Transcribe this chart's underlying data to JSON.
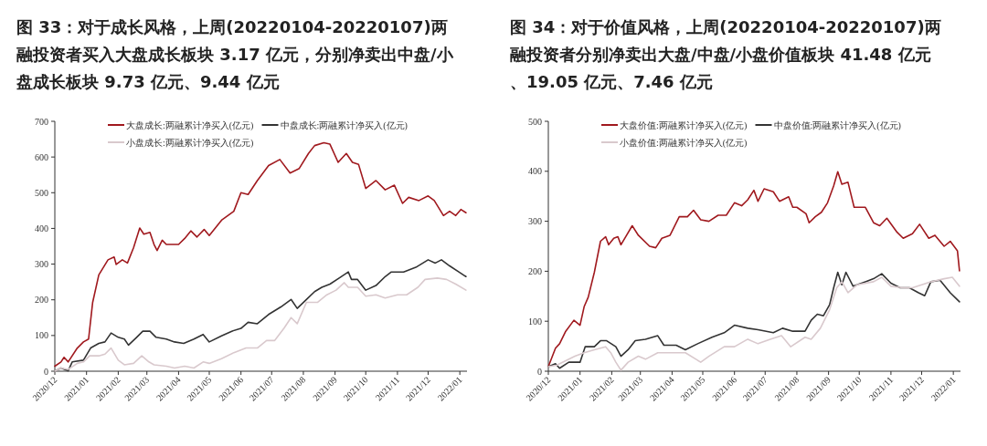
{
  "chart_data": [
    {
      "type": "line",
      "title": "图 33：对于成长风格，上周(20220104-20220107)两融投资者买入大盘成长板块 3.17 亿元，分别净卖出中盘/小盘成长板块 9.73 亿元、9.44 亿元",
      "legend": "top",
      "ylim": [
        0,
        700
      ],
      "yticks": [
        0,
        100,
        200,
        300,
        400,
        500,
        600,
        700
      ],
      "xlim": [
        "2020-12-01",
        "2022-01-08"
      ],
      "xticks": [
        {
          "value": "2020-12-01",
          "label": "2020/12"
        },
        {
          "value": "2021-01-01",
          "label": "2021/01"
        },
        {
          "value": "2021-02-01",
          "label": "2021/02"
        },
        {
          "value": "2021-03-01",
          "label": "2021/03"
        },
        {
          "value": "2021-04-01",
          "label": "2021/04"
        },
        {
          "value": "2021-05-01",
          "label": "2021/05"
        },
        {
          "value": "2021-06-01",
          "label": "2021/06"
        },
        {
          "value": "2021-07-01",
          "label": "2021/07"
        },
        {
          "value": "2021-08-01",
          "label": "2021/08"
        },
        {
          "value": "2021-09-01",
          "label": "2021/09"
        },
        {
          "value": "2021-10-01",
          "label": "2021/10"
        },
        {
          "value": "2021-11-01",
          "label": "2021/11"
        },
        {
          "value": "2021-12-01",
          "label": "2021/12"
        },
        {
          "value": "2022-01-01",
          "label": "2022/01"
        }
      ],
      "series": [
        {
          "name": "大盘成长:两融累计净买入(亿元)",
          "color": "#a0191e",
          "x": [
            "2020-12-01",
            "2020-12-07",
            "2020-12-10",
            "2020-12-14",
            "2020-12-23",
            "2020-12-29",
            "2021-01-03",
            "2021-01-07",
            "2021-01-13",
            "2021-01-22",
            "2021-01-28",
            "2021-01-30",
            "2021-02-05",
            "2021-02-10",
            "2021-02-16",
            "2021-02-22",
            "2021-02-26",
            "2021-03-04",
            "2021-03-08",
            "2021-03-11",
            "2021-03-16",
            "2021-03-20",
            "2021-04-01",
            "2021-04-07",
            "2021-04-13",
            "2021-04-19",
            "2021-04-26",
            "2021-05-01",
            "2021-05-13",
            "2021-05-25",
            "2021-06-01",
            "2021-06-08",
            "2021-06-17",
            "2021-06-28",
            "2021-07-09",
            "2021-07-19",
            "2021-07-28",
            "2021-08-06",
            "2021-08-12",
            "2021-08-21",
            "2021-08-27",
            "2021-09-04",
            "2021-09-12",
            "2021-09-18",
            "2021-09-24",
            "2021-10-01",
            "2021-10-11",
            "2021-10-20",
            "2021-10-29",
            "2021-11-06",
            "2021-11-12",
            "2021-11-22",
            "2021-12-01",
            "2021-12-07",
            "2021-12-16",
            "2021-12-22",
            "2021-12-28",
            "2022-01-02",
            "2022-01-07"
          ],
          "values": [
            14,
            26,
            39,
            26,
            65,
            82,
            90,
            193,
            270,
            312,
            320,
            299,
            312,
            303,
            346,
            401,
            384,
            389,
            355,
            338,
            367,
            355,
            355,
            372,
            393,
            376,
            397,
            380,
            423,
            448,
            500,
            495,
            534,
            576,
            593,
            555,
            568,
            610,
            632,
            640,
            636,
            585,
            610,
            585,
            579,
            512,
            534,
            508,
            521,
            470,
            487,
            478,
            491,
            478,
            436,
            448,
            436,
            453,
            444
          ]
        },
        {
          "name": "中盘成长:两融累计净买入(亿元)",
          "color": "#333333",
          "x": [
            "2020-12-01",
            "2020-12-07",
            "2020-12-14",
            "2020-12-18",
            "2020-12-29",
            "2021-01-05",
            "2021-01-13",
            "2021-01-19",
            "2021-01-25",
            "2021-02-01",
            "2021-02-07",
            "2021-02-11",
            "2021-02-19",
            "2021-02-25",
            "2021-03-04",
            "2021-03-10",
            "2021-03-20",
            "2021-03-28",
            "2021-04-06",
            "2021-04-16",
            "2021-04-25",
            "2021-05-01",
            "2021-05-13",
            "2021-05-23",
            "2021-06-01",
            "2021-06-08",
            "2021-06-17",
            "2021-06-28",
            "2021-07-10",
            "2021-07-20",
            "2021-07-26",
            "2021-08-04",
            "2021-08-12",
            "2021-08-19",
            "2021-08-27",
            "2021-09-05",
            "2021-09-14",
            "2021-09-17",
            "2021-09-23",
            "2021-10-01",
            "2021-10-11",
            "2021-10-20",
            "2021-10-26",
            "2021-11-07",
            "2021-11-19",
            "2021-12-01",
            "2021-12-08",
            "2021-12-14",
            "2021-12-22",
            "2021-12-31",
            "2022-01-07"
          ],
          "values": [
            0,
            9,
            1,
            26,
            31,
            65,
            78,
            82,
            107,
            95,
            90,
            73,
            95,
            112,
            112,
            95,
            90,
            82,
            78,
            90,
            103,
            82,
            99,
            112,
            120,
            137,
            133,
            159,
            180,
            201,
            176,
            201,
            223,
            235,
            244,
            261,
            278,
            257,
            257,
            227,
            240,
            265,
            278,
            278,
            291,
            312,
            303,
            312,
            295,
            278,
            265
          ]
        },
        {
          "name": "小盘成长:两融累计净买入(亿元)",
          "color": "#d9c9cd",
          "x": [
            "2020-12-01",
            "2020-12-07",
            "2020-12-14",
            "2020-12-23",
            "2020-12-29",
            "2021-01-04",
            "2021-01-13",
            "2021-01-19",
            "2021-01-25",
            "2021-02-01",
            "2021-02-07",
            "2021-02-16",
            "2021-02-24",
            "2021-03-03",
            "2021-03-08",
            "2021-03-20",
            "2021-03-28",
            "2021-04-07",
            "2021-04-16",
            "2021-04-25",
            "2021-05-01",
            "2021-05-13",
            "2021-05-25",
            "2021-06-06",
            "2021-06-17",
            "2021-06-26",
            "2021-07-04",
            "2021-07-13",
            "2021-07-20",
            "2021-07-26",
            "2021-08-04",
            "2021-08-15",
            "2021-08-24",
            "2021-09-02",
            "2021-09-10",
            "2021-09-14",
            "2021-09-23",
            "2021-10-01",
            "2021-10-11",
            "2021-10-20",
            "2021-11-01",
            "2021-11-10",
            "2021-11-21",
            "2021-11-28",
            "2021-12-10",
            "2021-12-19",
            "2021-12-28",
            "2022-01-07"
          ],
          "values": [
            0,
            9,
            5,
            22,
            26,
            43,
            43,
            48,
            65,
            31,
            18,
            22,
            43,
            26,
            18,
            14,
            9,
            14,
            9,
            26,
            22,
            35,
            52,
            65,
            65,
            86,
            86,
            120,
            150,
            133,
            193,
            193,
            214,
            227,
            248,
            235,
            235,
            210,
            214,
            205,
            214,
            214,
            235,
            257,
            261,
            257,
            244,
            227
          ]
        }
      ]
    },
    {
      "type": "line",
      "title": "图 34：对于价值风格，上周(20220104-20220107)两融投资者分别净卖出大盘/中盘/小盘价值板块 41.48 亿元、19.05 亿元、7.46 亿元",
      "legend": "top",
      "ylim": [
        0,
        500
      ],
      "yticks": [
        0,
        100,
        200,
        300,
        400,
        500
      ],
      "xlim": [
        "2020-12-01",
        "2022-01-08"
      ],
      "xticks": [
        {
          "value": "2020-12-01",
          "label": "2020/12"
        },
        {
          "value": "2021-01-01",
          "label": "2021/01"
        },
        {
          "value": "2021-02-01",
          "label": "2021/02"
        },
        {
          "value": "2021-03-01",
          "label": "2021/03"
        },
        {
          "value": "2021-04-01",
          "label": "2021/04"
        },
        {
          "value": "2021-05-01",
          "label": "2021/05"
        },
        {
          "value": "2021-06-01",
          "label": "2021/06"
        },
        {
          "value": "2021-07-01",
          "label": "2021/07"
        },
        {
          "value": "2021-08-01",
          "label": "2021/08"
        },
        {
          "value": "2021-09-01",
          "label": "2021/09"
        },
        {
          "value": "2021-10-01",
          "label": "2021/10"
        },
        {
          "value": "2021-11-01",
          "label": "2021/11"
        },
        {
          "value": "2021-12-01",
          "label": "2021/12"
        },
        {
          "value": "2022-01-01",
          "label": "2022/01"
        }
      ],
      "series": [
        {
          "name": "大盘价值:两融累计净买入(亿元)",
          "color": "#a0191e",
          "x": [
            "2020-12-01",
            "2020-12-08",
            "2020-12-12",
            "2020-12-18",
            "2020-12-26",
            "2021-01-01",
            "2021-01-05",
            "2021-01-09",
            "2021-01-15",
            "2021-01-21",
            "2021-01-26",
            "2021-01-29",
            "2021-02-03",
            "2021-02-07",
            "2021-02-10",
            "2021-02-21",
            "2021-02-27",
            "2021-03-10",
            "2021-03-16",
            "2021-03-22",
            "2021-03-30",
            "2021-04-08",
            "2021-04-16",
            "2021-04-22",
            "2021-04-29",
            "2021-05-07",
            "2021-05-16",
            "2021-05-24",
            "2021-06-01",
            "2021-06-08",
            "2021-06-14",
            "2021-06-20",
            "2021-06-24",
            "2021-06-30",
            "2021-07-09",
            "2021-07-15",
            "2021-07-24",
            "2021-07-28",
            "2021-08-01",
            "2021-08-10",
            "2021-08-13",
            "2021-08-19",
            "2021-08-25",
            "2021-08-31",
            "2021-09-06",
            "2021-09-10",
            "2021-09-14",
            "2021-09-20",
            "2021-09-26",
            "2021-10-07",
            "2021-10-15",
            "2021-10-21",
            "2021-10-28",
            "2021-11-07",
            "2021-11-13",
            "2021-11-22",
            "2021-11-29",
            "2021-12-08",
            "2021-12-14",
            "2021-12-23",
            "2021-12-29",
            "2022-01-05",
            "2022-01-07"
          ],
          "values": [
            9,
            46,
            55,
            80,
            102,
            92,
            129,
            148,
            198,
            260,
            269,
            253,
            266,
            269,
            253,
            291,
            272,
            250,
            247,
            266,
            272,
            309,
            309,
            322,
            303,
            300,
            312,
            312,
            337,
            331,
            343,
            362,
            340,
            365,
            359,
            340,
            349,
            328,
            328,
            315,
            297,
            309,
            318,
            337,
            371,
            399,
            374,
            378,
            328,
            328,
            297,
            291,
            306,
            278,
            266,
            275,
            294,
            266,
            272,
            250,
            260,
            241,
            201
          ]
        },
        {
          "name": "中盘价值:两融累计净买入(亿元)",
          "color": "#333333",
          "x": [
            "2020-12-01",
            "2020-12-08",
            "2020-12-12",
            "2020-12-21",
            "2021-01-01",
            "2021-01-06",
            "2021-01-15",
            "2021-01-21",
            "2021-01-27",
            "2021-02-05",
            "2021-02-10",
            "2021-02-17",
            "2021-02-24",
            "2021-03-06",
            "2021-03-18",
            "2021-03-24",
            "2021-04-05",
            "2021-04-14",
            "2021-04-26",
            "2021-05-10",
            "2021-05-22",
            "2021-06-01",
            "2021-06-14",
            "2021-06-24",
            "2021-07-09",
            "2021-07-18",
            "2021-07-28",
            "2021-08-09",
            "2021-08-15",
            "2021-08-21",
            "2021-08-27",
            "2021-09-02",
            "2021-09-06",
            "2021-09-10",
            "2021-09-14",
            "2021-09-18",
            "2021-09-25",
            "2021-10-07",
            "2021-10-15",
            "2021-10-23",
            "2021-11-01",
            "2021-11-10",
            "2021-11-19",
            "2021-11-28",
            "2021-12-04",
            "2021-12-10",
            "2021-12-19",
            "2021-12-29",
            "2022-01-07"
          ],
          "values": [
            9,
            15,
            6,
            18,
            18,
            49,
            49,
            61,
            61,
            49,
            30,
            43,
            61,
            64,
            71,
            52,
            52,
            43,
            55,
            68,
            77,
            92,
            86,
            83,
            77,
            86,
            80,
            80,
            102,
            114,
            111,
            133,
            167,
            198,
            173,
            198,
            170,
            179,
            185,
            195,
            176,
            167,
            167,
            157,
            151,
            179,
            182,
            157,
            139
          ]
        },
        {
          "name": "小盘价值:两融累计净买入(亿元)",
          "color": "#d9c9cd",
          "x": [
            "2020-12-01",
            "2020-12-09",
            "2020-12-18",
            "2020-12-27",
            "2021-01-05",
            "2021-01-15",
            "2021-01-26",
            "2021-01-31",
            "2021-02-05",
            "2021-02-10",
            "2021-02-17",
            "2021-02-27",
            "2021-03-06",
            "2021-03-18",
            "2021-03-30",
            "2021-04-14",
            "2021-04-29",
            "2021-05-07",
            "2021-05-22",
            "2021-06-01",
            "2021-06-14",
            "2021-06-24",
            "2021-07-06",
            "2021-07-17",
            "2021-07-26",
            "2021-08-09",
            "2021-08-15",
            "2021-08-24",
            "2021-09-02",
            "2021-09-09",
            "2021-09-14",
            "2021-09-20",
            "2021-09-29",
            "2021-10-15",
            "2021-10-23",
            "2021-11-01",
            "2021-11-13",
            "2021-11-22",
            "2021-12-01",
            "2021-12-10",
            "2021-12-23",
            "2021-12-31",
            "2022-01-07"
          ],
          "values": [
            9,
            12,
            21,
            30,
            37,
            43,
            49,
            37,
            18,
            2,
            18,
            30,
            24,
            37,
            37,
            37,
            18,
            30,
            49,
            49,
            64,
            55,
            64,
            71,
            49,
            68,
            64,
            86,
            123,
            167,
            179,
            157,
            173,
            179,
            188,
            170,
            167,
            167,
            173,
            179,
            185,
            188,
            170
          ]
        }
      ]
    }
  ]
}
